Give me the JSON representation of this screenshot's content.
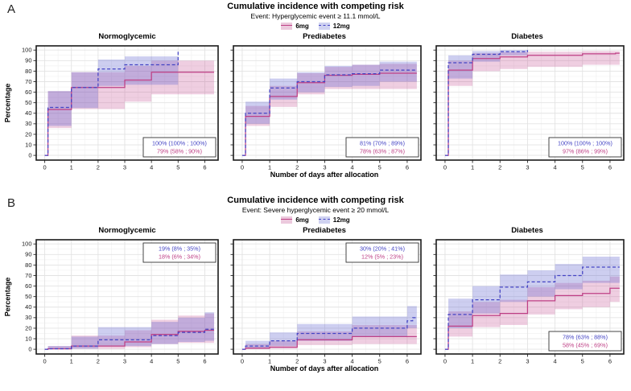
{
  "style": {
    "series_colors": {
      "6mg": "#BE3F85",
      "12mg": "#4444C4"
    },
    "band_colors": {
      "6mg": "rgba(197,73,143,0.27)",
      "12mg": "rgba(88,92,205,0.30)"
    },
    "legend_swatch_colors": {
      "6mg": "#ecc9dd",
      "12mg": "#cfd2f1"
    },
    "grid_major": "#e3e3e3",
    "grid_minor": "#f2f2f2",
    "panel_border": "#1b1b1b",
    "annotation_border": "#333333",
    "annotation_bg": "#ffffff"
  },
  "chart_data": [
    {
      "panel_label": "A",
      "type": "line",
      "title": "Cumulative incidence with competing risk",
      "subtitle": "Event: Hyperglycemic event ≥ 11.1 mmol/L",
      "xlabel": "Number of days after allocation",
      "ylabel": "Percentage",
      "xlim": [
        0,
        6.35
      ],
      "ylim": [
        0,
        100
      ],
      "xticks": [
        0,
        1,
        2,
        3,
        4,
        5,
        6
      ],
      "yticks": [
        0,
        10,
        20,
        30,
        40,
        50,
        60,
        70,
        80,
        90,
        100
      ],
      "grid": true,
      "legend": {
        "position": "top",
        "entries": [
          {
            "label": "6mg",
            "dash": "solid"
          },
          {
            "label": "12mg",
            "dash": "dashed"
          }
        ]
      },
      "facets": [
        {
          "title": "Normoglycemic",
          "annotation": {
            "corner": "br",
            "lines": [
              {
                "series": "12mg",
                "text": "100% (100% ; 100%)"
              },
              {
                "series": "6mg",
                "text": "79% (58% ; 90%)"
              }
            ]
          },
          "series": [
            {
              "name": "6mg",
              "steps": [
                [
                  0,
                  0
                ],
                [
                  0.12,
                  43.5
                ],
                [
                  1,
                  64.5
                ],
                [
                  3,
                  71.5
                ],
                [
                  4,
                  79
                ]
              ],
              "end": 6.35,
              "band": {
                "x": [
                  0.12,
                  1,
                  3,
                  4,
                  6.35
                ],
                "lo": [
                  26,
                  44,
                  51,
                  58
                ],
                "hi": [
                  61,
                  79,
                  85,
                  90
                ]
              }
            },
            {
              "name": "12mg",
              "steps": [
                [
                  0,
                  0
                ],
                [
                  0.12,
                  45.5
                ],
                [
                  1,
                  64.5
                ],
                [
                  2,
                  82
                ],
                [
                  3,
                  86
                ]
              ],
              "end": 5,
              "end_jump": 100,
              "band": {
                "x": [
                  0.12,
                  1,
                  2,
                  3,
                  5
                ],
                "lo": [
                  28,
                  45,
                  66,
                  67
                ],
                "hi": [
                  61,
                  79,
                  91,
                  94
                ]
              }
            }
          ]
        },
        {
          "title": "Prediabetes",
          "annotation": {
            "corner": "br",
            "lines": [
              {
                "series": "12mg",
                "text": "81% (70% ; 89%)"
              },
              {
                "series": "6mg",
                "text": "78% (63% ; 87%)"
              }
            ]
          },
          "series": [
            {
              "name": "6mg",
              "steps": [
                [
                  0,
                  0
                ],
                [
                  0.12,
                  37
                ],
                [
                  1,
                  56
                ],
                [
                  2,
                  69
                ],
                [
                  3,
                  76
                ],
                [
                  4,
                  77
                ],
                [
                  5,
                  78
                ]
              ],
              "end": 6.35,
              "band": {
                "x": [
                  0.12,
                  1,
                  2,
                  3,
                  4,
                  5,
                  6.35
                ],
                "lo": [
                  28,
                  46,
                  58,
                  63,
                  63,
                  63
                ],
                "hi": [
                  47,
                  66,
                  78,
                  84,
                  86,
                  87
                ]
              }
            },
            {
              "name": "12mg",
              "steps": [
                [
                  0,
                  0
                ],
                [
                  0.12,
                  40
                ],
                [
                  1,
                  64
                ],
                [
                  2,
                  70
                ],
                [
                  3,
                  76.5
                ],
                [
                  4,
                  77.5
                ],
                [
                  5,
                  81
                ]
              ],
              "end": 6.35,
              "band": {
                "x": [
                  0.12,
                  1,
                  2,
                  3,
                  4,
                  5,
                  6.35
                ],
                "lo": [
                  30,
                  53,
                  60,
                  65,
                  66,
                  70
                ],
                "hi": [
                  51,
                  73,
                  79,
                  85,
                  86,
                  89
                ]
              }
            }
          ]
        },
        {
          "title": "Diabetes",
          "annotation": {
            "corner": "br",
            "lines": [
              {
                "series": "12mg",
                "text": "100% (100% ; 100%)"
              },
              {
                "series": "6mg",
                "text": "97% (86% ; 99%)"
              }
            ]
          },
          "series": [
            {
              "name": "6mg",
              "steps": [
                [
                  0,
                  0
                ],
                [
                  0.12,
                  81
                ],
                [
                  1,
                  92
                ],
                [
                  2,
                  93.5
                ],
                [
                  3,
                  95
                ],
                [
                  5,
                  96.5
                ],
                [
                  6.2,
                  97
                ]
              ],
              "end": 6.35,
              "band": {
                "x": [
                  0.12,
                  1,
                  2,
                  3,
                  5,
                  6.2,
                  6.35
                ],
                "lo": [
                  66,
                  80,
                  82,
                  84,
                  86,
                  86
                ],
                "hi": [
                  90,
                  97,
                  98,
                  98.5,
                  99,
                  99
                ]
              }
            },
            {
              "name": "12mg",
              "steps": [
                [
                  0,
                  0
                ],
                [
                  0.12,
                  88
                ],
                [
                  1,
                  96
                ],
                [
                  2,
                  98.5
                ]
              ],
              "end": 3,
              "end_jump": 100,
              "band": {
                "x": [
                  0.12,
                  1,
                  2,
                  3
                ],
                "lo": [
                  73,
                  89,
                  95
                ],
                "hi": [
                  95,
                  99,
                  100
                ]
              }
            }
          ]
        }
      ]
    },
    {
      "panel_label": "B",
      "type": "line",
      "title": "Cumulative incidence with competing risk",
      "subtitle": "Event: Severe hyperglycemic event ≥ 20 mmol/L",
      "xlabel": "Number of days after allocation",
      "ylabel": "Percentage",
      "xlim": [
        0,
        6.35
      ],
      "ylim": [
        0,
        100
      ],
      "xticks": [
        0,
        1,
        2,
        3,
        4,
        5,
        6
      ],
      "yticks": [
        0,
        10,
        20,
        30,
        40,
        50,
        60,
        70,
        80,
        90,
        100
      ],
      "grid": true,
      "legend": {
        "position": "top",
        "entries": [
          {
            "label": "6mg",
            "dash": "solid"
          },
          {
            "label": "12mg",
            "dash": "dashed"
          }
        ]
      },
      "facets": [
        {
          "title": "Normoglycemic",
          "annotation": {
            "corner": "tr",
            "lines": [
              {
                "series": "12mg",
                "text": "19% (8% ; 35%)"
              },
              {
                "series": "6mg",
                "text": "18% (6% ; 34%)"
              }
            ]
          },
          "series": [
            {
              "name": "6mg",
              "steps": [
                [
                  0,
                  0
                ],
                [
                  0.12,
                  0.5
                ],
                [
                  1,
                  3
                ],
                [
                  3,
                  7
                ],
                [
                  4,
                  14
                ],
                [
                  5,
                  17
                ],
                [
                  6,
                  18
                ]
              ],
              "end": 6.35,
              "band": {
                "x": [
                  0.12,
                  1,
                  3,
                  4,
                  5,
                  6,
                  6.35
                ],
                "lo": [
                  0,
                  0.5,
                  2,
                  5,
                  6,
                  6
                ],
                "hi": [
                  3,
                  13,
                  18,
                  28,
                  32,
                  34
                ]
              }
            },
            {
              "name": "12mg",
              "steps": [
                [
                  0,
                  0
                ],
                [
                  0.12,
                  0.5
                ],
                [
                  1,
                  3
                ],
                [
                  2,
                  9
                ],
                [
                  4,
                  13
                ],
                [
                  5,
                  16
                ],
                [
                  6,
                  19
                ]
              ],
              "end": 6.35,
              "band": {
                "x": [
                  0.12,
                  1,
                  2,
                  4,
                  5,
                  6,
                  6.35
                ],
                "lo": [
                  0,
                  0.5,
                  3,
                  5,
                  7,
                  8
                ],
                "hi": [
                  3,
                  12,
                  21,
                  26,
                  30,
                  35
                ]
              }
            }
          ]
        },
        {
          "title": "Prediabetes",
          "annotation": {
            "corner": "tr",
            "lines": [
              {
                "series": "12mg",
                "text": "30% (20% ; 41%)"
              },
              {
                "series": "6mg",
                "text": "12% (5% ; 23%)"
              }
            ]
          },
          "series": [
            {
              "name": "6mg",
              "steps": [
                [
                  0,
                  0
                ],
                [
                  0.12,
                  1
                ],
                [
                  1,
                  2
                ],
                [
                  2,
                  9
                ],
                [
                  4,
                  12
                ]
              ],
              "end": 6.35,
              "band": {
                "x": [
                  0.12,
                  1,
                  2,
                  4,
                  6.35
                ],
                "lo": [
                  0,
                  0.5,
                  4,
                  5
                ],
                "hi": [
                  5,
                  8,
                  17,
                  23
                ]
              }
            },
            {
              "name": "12mg",
              "steps": [
                [
                  0,
                  0
                ],
                [
                  0.12,
                  3
                ],
                [
                  1,
                  8
                ],
                [
                  2,
                  15
                ],
                [
                  4,
                  20
                ],
                [
                  6,
                  27
                ],
                [
                  6.2,
                  30
                ]
              ],
              "end": 6.35,
              "band": {
                "x": [
                  0.12,
                  1,
                  2,
                  4,
                  6,
                  6.35
                ],
                "lo": [
                  0.5,
                  3,
                  8,
                  12,
                  20
                ],
                "hi": [
                  8,
                  16,
                  24,
                  31,
                  41
                ]
              }
            }
          ]
        },
        {
          "title": "Diabetes",
          "annotation": {
            "corner": "br",
            "lines": [
              {
                "series": "12mg",
                "text": "78% (63% ; 88%)"
              },
              {
                "series": "6mg",
                "text": "58% (45% ; 69%)"
              }
            ]
          },
          "series": [
            {
              "name": "6mg",
              "steps": [
                [
                  0,
                  0
                ],
                [
                  0.12,
                  22
                ],
                [
                  1,
                  32
                ],
                [
                  2,
                  34
                ],
                [
                  3,
                  46
                ],
                [
                  4,
                  51
                ],
                [
                  5,
                  53
                ],
                [
                  6,
                  58
                ]
              ],
              "end": 6.35,
              "band": {
                "x": [
                  0.12,
                  1,
                  2,
                  3,
                  4,
                  5,
                  6,
                  6.35
                ],
                "lo": [
                  12,
                  21,
                  23,
                  33,
                  38,
                  40,
                  45
                ],
                "hi": [
                  36,
                  45,
                  47,
                  59,
                  63,
                  65,
                  69
                ]
              }
            },
            {
              "name": "12mg",
              "steps": [
                [
                  0,
                  0
                ],
                [
                  0.12,
                  33
                ],
                [
                  1,
                  47
                ],
                [
                  2,
                  59
                ],
                [
                  3,
                  64
                ],
                [
                  4,
                  70
                ],
                [
                  5,
                  78
                ]
              ],
              "end": 6.35,
              "band": {
                "x": [
                  0.12,
                  1,
                  2,
                  3,
                  4,
                  5,
                  6.35
                ],
                "lo": [
                  20,
                  34,
                  45,
                  50,
                  57,
                  63
                ],
                "hi": [
                  48,
                  60,
                  71,
                  75,
                  81,
                  88
                ]
              }
            }
          ]
        }
      ]
    }
  ]
}
